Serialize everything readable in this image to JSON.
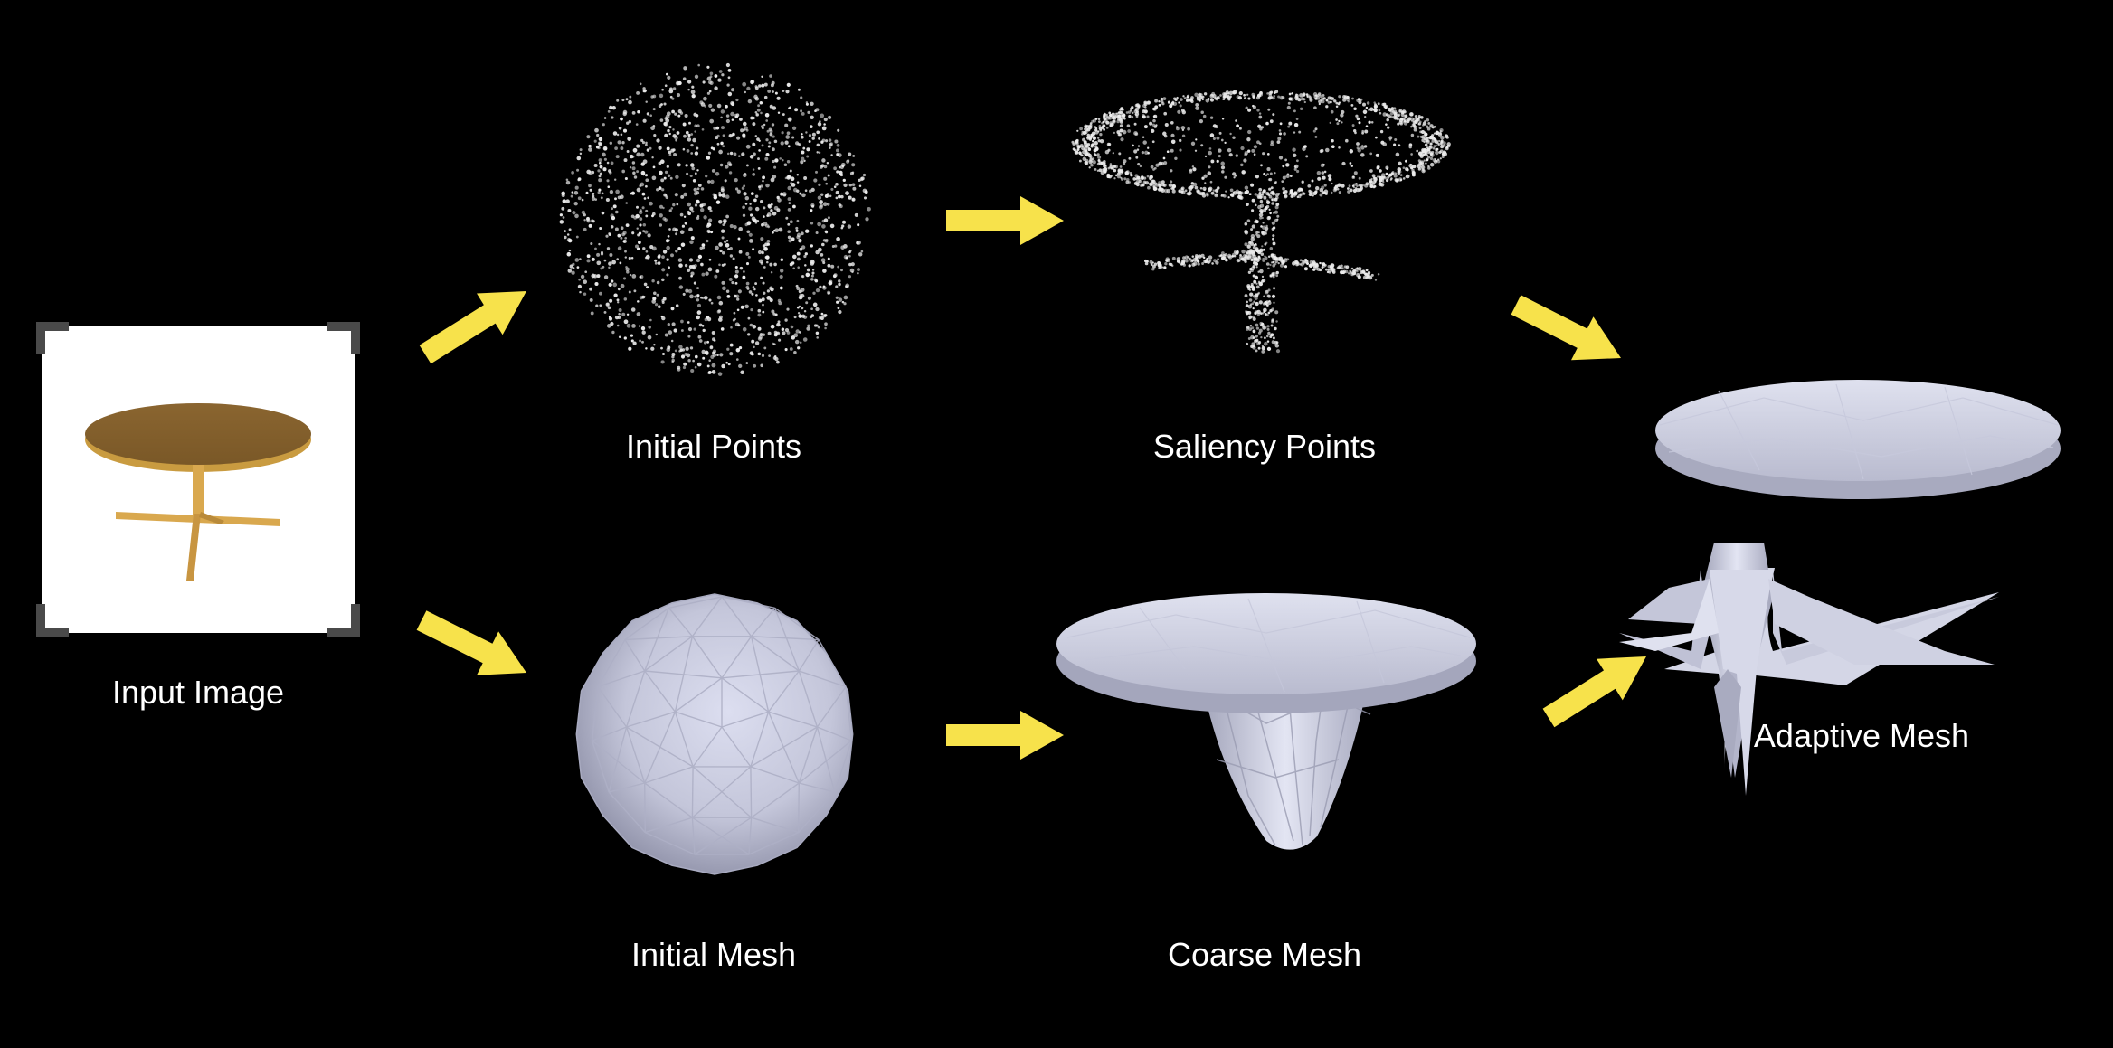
{
  "colors": {
    "background": "#000000",
    "arrow": "#f7e24b",
    "mesh_light": "#d6d8ec",
    "mesh_mid": "#b7b9cf",
    "mesh_dark": "#8e90a6",
    "points": "#ececec",
    "table_wood": "#8f6a2f",
    "table_wood_edge": "#c99b40",
    "frame_bracket": "#4a4a4a"
  },
  "nodes": {
    "input_image": {
      "label": "Input Image",
      "icon": "table-image"
    },
    "initial_points": {
      "label": "Initial Points",
      "icon": "sphere-point-cloud"
    },
    "saliency_points": {
      "label": "Saliency Points",
      "icon": "table-point-cloud"
    },
    "initial_mesh": {
      "label": "Initial Mesh",
      "icon": "icosphere-mesh"
    },
    "coarse_mesh": {
      "label": "Coarse Mesh",
      "icon": "coarse-table-mesh"
    },
    "adaptive_mesh": {
      "label": "Adaptive Mesh",
      "icon": "adaptive-table-mesh"
    }
  },
  "edges": [
    {
      "from": "input_image",
      "to": "initial_points"
    },
    {
      "from": "input_image",
      "to": "initial_mesh"
    },
    {
      "from": "initial_points",
      "to": "saliency_points"
    },
    {
      "from": "initial_mesh",
      "to": "coarse_mesh"
    },
    {
      "from": "saliency_points",
      "to": "adaptive_mesh"
    },
    {
      "from": "coarse_mesh",
      "to": "adaptive_mesh"
    }
  ]
}
